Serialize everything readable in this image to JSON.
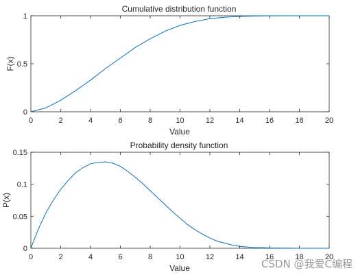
{
  "chart_data": [
    {
      "type": "line",
      "title": "Cumulative distribution function",
      "xlabel": "Value",
      "ylabel": "F(x)",
      "xlim": [
        0,
        20
      ],
      "ylim": [
        0,
        1
      ],
      "xticks": [
        0,
        2,
        4,
        6,
        8,
        10,
        12,
        14,
        16,
        18,
        20
      ],
      "yticks": [
        0,
        0.5,
        1
      ],
      "ytick_labels": [
        "0",
        "0.5",
        "1"
      ],
      "grid": false,
      "legend": "none",
      "color": "#0072BD",
      "series": [
        {
          "x": [
            0,
            1,
            2,
            3,
            4,
            5,
            6,
            7,
            8,
            9,
            10,
            11,
            12,
            13,
            14,
            15,
            16,
            17,
            18,
            19,
            20
          ],
          "y": [
            0,
            0.04,
            0.12,
            0.22,
            0.33,
            0.45,
            0.56,
            0.67,
            0.76,
            0.84,
            0.9,
            0.94,
            0.97,
            0.985,
            0.993,
            0.997,
            0.999,
            1,
            1,
            1,
            1
          ]
        }
      ]
    },
    {
      "type": "line",
      "title": "Probability density function",
      "xlabel": "Value",
      "ylabel": "P(x)",
      "xlim": [
        0,
        20
      ],
      "ylim": [
        0,
        0.15
      ],
      "xticks": [
        0,
        2,
        4,
        6,
        8,
        10,
        12,
        14,
        16,
        18,
        20
      ],
      "yticks": [
        0,
        0.05,
        0.1,
        0.15
      ],
      "ytick_labels": [
        "0",
        "0.05",
        "0.1",
        "0.15"
      ],
      "grid": false,
      "legend": "none",
      "color": "#0072BD",
      "series": [
        {
          "x": [
            0,
            0.5,
            1,
            1.5,
            2,
            2.5,
            3,
            3.5,
            4,
            4.5,
            5,
            5.5,
            6,
            6.5,
            7,
            7.5,
            8,
            8.5,
            9,
            9.5,
            10,
            10.5,
            11,
            11.5,
            12,
            12.5,
            13,
            13.5,
            14,
            14.5,
            15,
            15.5,
            16,
            16.5,
            17,
            17.5,
            18,
            18.5,
            19,
            19.5,
            20
          ],
          "y": [
            0,
            0.03,
            0.055,
            0.075,
            0.092,
            0.106,
            0.118,
            0.126,
            0.132,
            0.134,
            0.135,
            0.133,
            0.128,
            0.12,
            0.111,
            0.101,
            0.09,
            0.079,
            0.068,
            0.057,
            0.047,
            0.037,
            0.029,
            0.022,
            0.016,
            0.011,
            0.008,
            0.005,
            0.003,
            0.002,
            0.001,
            0.001,
            0.0005,
            0.0003,
            0.0002,
            0.0001,
            0,
            0,
            0,
            0,
            0
          ]
        }
      ]
    }
  ],
  "watermark": "CSDN @我爱C编程"
}
